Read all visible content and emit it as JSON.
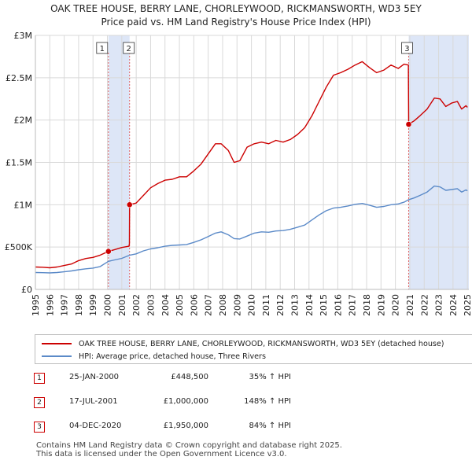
{
  "title_line1": "OAK TREE HOUSE, BERRY LANE, CHORLEYWOOD, RICKMANSWORTH, WD3 5EY",
  "title_line2": "Price paid vs. HM Land Registry's House Price Index (HPI)",
  "colors": {
    "property_line": "#cc0000",
    "hpi_line": "#5b8ac8",
    "highlight_band": "#dde6f7",
    "grid": "#d9d9d9",
    "marker_dash": "#e06060"
  },
  "chart_data": {
    "type": "line",
    "ylim": [
      0,
      3000000
    ],
    "xlim": [
      1995,
      2025.1
    ],
    "y_ticks": [
      {
        "value": 0,
        "label": "£0"
      },
      {
        "value": 500000,
        "label": "£500K"
      },
      {
        "value": 1000000,
        "label": "£1M"
      },
      {
        "value": 1500000,
        "label": "£1.5M"
      },
      {
        "value": 2000000,
        "label": "£2M"
      },
      {
        "value": 2500000,
        "label": "£2.5M"
      },
      {
        "value": 3000000,
        "label": "£3M"
      }
    ],
    "x_ticks": [
      "1995",
      "1996",
      "1997",
      "1998",
      "1999",
      "2000",
      "2001",
      "2002",
      "2003",
      "2004",
      "2005",
      "2006",
      "2007",
      "2008",
      "2009",
      "2010",
      "2011",
      "2012",
      "2013",
      "2014",
      "2015",
      "2016",
      "2017",
      "2018",
      "2019",
      "2020",
      "2021",
      "2022",
      "2023",
      "2024",
      "2025"
    ],
    "grid": true,
    "series": [
      {
        "name": "OAK TREE HOUSE, BERRY LANE, CHORLEYWOOD, RICKMANSWORTH, WD3 5EY (detached house)",
        "key": "property",
        "points": [
          [
            1995.0,
            265000
          ],
          [
            1995.5,
            262000
          ],
          [
            1996.0,
            255000
          ],
          [
            1996.5,
            265000
          ],
          [
            1997.0,
            282000
          ],
          [
            1997.5,
            300000
          ],
          [
            1998.0,
            340000
          ],
          [
            1998.5,
            365000
          ],
          [
            1999.0,
            378000
          ],
          [
            1999.5,
            405000
          ],
          [
            2000.07,
            448500
          ],
          [
            2000.5,
            470000
          ],
          [
            2001.0,
            495000
          ],
          [
            2001.5,
            510000
          ],
          [
            2001.53,
            540000
          ],
          [
            2001.54,
            1000000
          ],
          [
            2002.0,
            1020000
          ],
          [
            2002.5,
            1110000
          ],
          [
            2003.0,
            1200000
          ],
          [
            2003.5,
            1250000
          ],
          [
            2004.0,
            1290000
          ],
          [
            2004.5,
            1300000
          ],
          [
            2005.0,
            1330000
          ],
          [
            2005.5,
            1330000
          ],
          [
            2006.0,
            1400000
          ],
          [
            2006.5,
            1480000
          ],
          [
            2007.0,
            1600000
          ],
          [
            2007.5,
            1720000
          ],
          [
            2007.9,
            1720000
          ],
          [
            2008.4,
            1640000
          ],
          [
            2008.8,
            1500000
          ],
          [
            2009.2,
            1520000
          ],
          [
            2009.7,
            1680000
          ],
          [
            2010.2,
            1720000
          ],
          [
            2010.7,
            1740000
          ],
          [
            2011.2,
            1720000
          ],
          [
            2011.7,
            1760000
          ],
          [
            2012.2,
            1740000
          ],
          [
            2012.7,
            1770000
          ],
          [
            2013.2,
            1830000
          ],
          [
            2013.7,
            1910000
          ],
          [
            2014.2,
            2050000
          ],
          [
            2014.7,
            2220000
          ],
          [
            2015.2,
            2390000
          ],
          [
            2015.7,
            2530000
          ],
          [
            2016.2,
            2560000
          ],
          [
            2016.7,
            2600000
          ],
          [
            2017.2,
            2650000
          ],
          [
            2017.7,
            2690000
          ],
          [
            2018.2,
            2620000
          ],
          [
            2018.7,
            2560000
          ],
          [
            2019.2,
            2590000
          ],
          [
            2019.7,
            2650000
          ],
          [
            2020.2,
            2610000
          ],
          [
            2020.6,
            2660000
          ],
          [
            2020.9,
            2650000
          ],
          [
            2020.92,
            1950000
          ],
          [
            2021.3,
            1990000
          ],
          [
            2021.7,
            2050000
          ],
          [
            2022.2,
            2130000
          ],
          [
            2022.7,
            2260000
          ],
          [
            2023.1,
            2250000
          ],
          [
            2023.5,
            2160000
          ],
          [
            2023.9,
            2200000
          ],
          [
            2024.3,
            2220000
          ],
          [
            2024.6,
            2130000
          ],
          [
            2024.9,
            2170000
          ],
          [
            2025.0,
            2150000
          ]
        ]
      },
      {
        "name": "HPI: Average price, detached house, Three Rivers",
        "key": "hpi",
        "points": [
          [
            1995.0,
            200000
          ],
          [
            1995.5,
            198000
          ],
          [
            1996.0,
            195000
          ],
          [
            1996.5,
            200000
          ],
          [
            1997.0,
            208000
          ],
          [
            1997.5,
            218000
          ],
          [
            1998.0,
            232000
          ],
          [
            1998.5,
            243000
          ],
          [
            1999.0,
            252000
          ],
          [
            1999.5,
            270000
          ],
          [
            2000.07,
            332000
          ],
          [
            2000.5,
            348000
          ],
          [
            2001.0,
            367000
          ],
          [
            2001.53,
            403000
          ],
          [
            2002.0,
            420000
          ],
          [
            2002.5,
            455000
          ],
          [
            2003.0,
            478000
          ],
          [
            2003.5,
            492000
          ],
          [
            2004.0,
            510000
          ],
          [
            2004.5,
            520000
          ],
          [
            2005.0,
            525000
          ],
          [
            2005.5,
            530000
          ],
          [
            2006.0,
            555000
          ],
          [
            2006.5,
            585000
          ],
          [
            2007.0,
            625000
          ],
          [
            2007.5,
            665000
          ],
          [
            2007.9,
            680000
          ],
          [
            2008.4,
            645000
          ],
          [
            2008.8,
            600000
          ],
          [
            2009.2,
            595000
          ],
          [
            2009.7,
            630000
          ],
          [
            2010.2,
            665000
          ],
          [
            2010.7,
            680000
          ],
          [
            2011.2,
            675000
          ],
          [
            2011.7,
            690000
          ],
          [
            2012.2,
            695000
          ],
          [
            2012.7,
            710000
          ],
          [
            2013.2,
            735000
          ],
          [
            2013.7,
            760000
          ],
          [
            2014.2,
            820000
          ],
          [
            2014.7,
            880000
          ],
          [
            2015.2,
            930000
          ],
          [
            2015.7,
            960000
          ],
          [
            2016.2,
            970000
          ],
          [
            2016.7,
            985000
          ],
          [
            2017.2,
            1005000
          ],
          [
            2017.7,
            1015000
          ],
          [
            2018.2,
            995000
          ],
          [
            2018.7,
            970000
          ],
          [
            2019.2,
            980000
          ],
          [
            2019.7,
            1000000
          ],
          [
            2020.2,
            1010000
          ],
          [
            2020.6,
            1030000
          ],
          [
            2020.92,
            1060000
          ],
          [
            2021.3,
            1080000
          ],
          [
            2021.7,
            1110000
          ],
          [
            2022.2,
            1150000
          ],
          [
            2022.7,
            1220000
          ],
          [
            2023.1,
            1210000
          ],
          [
            2023.5,
            1170000
          ],
          [
            2023.9,
            1180000
          ],
          [
            2024.3,
            1190000
          ],
          [
            2024.6,
            1150000
          ],
          [
            2024.9,
            1175000
          ],
          [
            2025.0,
            1165000
          ]
        ]
      }
    ],
    "sale_markers": [
      {
        "label": "1",
        "x": 2000.07,
        "y": 448500
      },
      {
        "label": "2",
        "x": 2001.54,
        "y": 1000000
      },
      {
        "label": "3",
        "x": 2020.92,
        "y": 1950000
      }
    ],
    "highlight_spans": [
      [
        2000.07,
        2001.54
      ],
      [
        2020.92,
        2025.1
      ]
    ]
  },
  "legend": {
    "property_label": "OAK TREE HOUSE, BERRY LANE, CHORLEYWOOD, RICKMANSWORTH, WD3 5EY (detached house)",
    "hpi_label": "HPI: Average price, detached house, Three Rivers"
  },
  "sales": [
    {
      "num": "1",
      "date": "25-JAN-2000",
      "price": "£448,500",
      "hpi": "35% ↑ HPI"
    },
    {
      "num": "2",
      "date": "17-JUL-2001",
      "price": "£1,000,000",
      "hpi": "148% ↑ HPI"
    },
    {
      "num": "3",
      "date": "04-DEC-2020",
      "price": "£1,950,000",
      "hpi": "84% ↑ HPI"
    }
  ],
  "footer": {
    "line1": "Contains HM Land Registry data © Crown copyright and database right 2025.",
    "line2": "This data is licensed under the Open Government Licence v3.0."
  }
}
